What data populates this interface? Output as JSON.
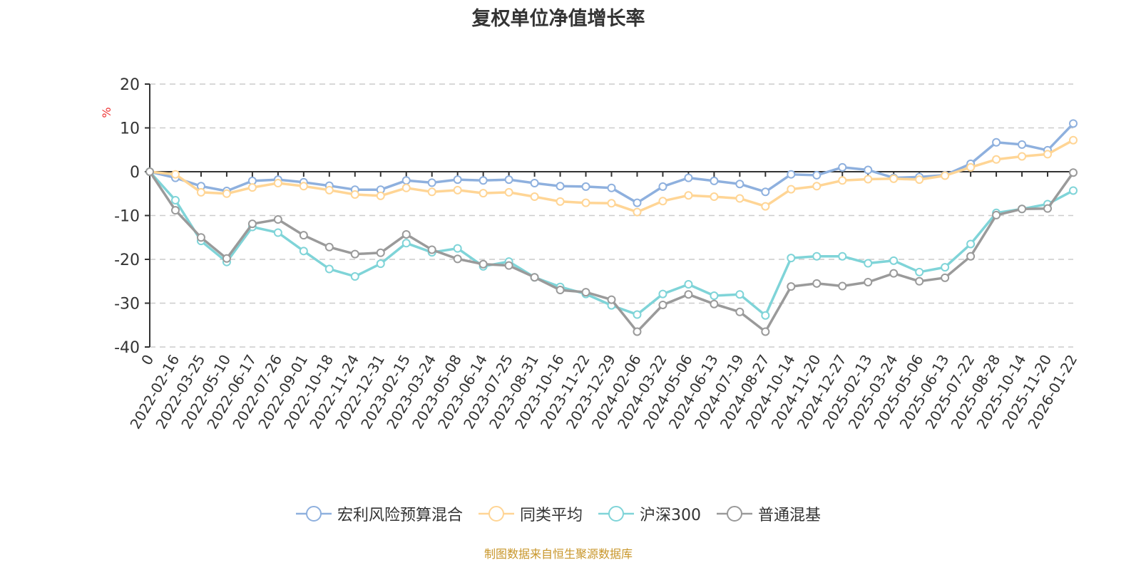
{
  "chart_data": {
    "type": "line",
    "title": "复权单位净值增长率",
    "ylabel": "%",
    "xlabel": "",
    "ylim": [
      -40,
      20
    ],
    "yticks": [
      20,
      10,
      0,
      -10,
      -20,
      -30,
      -40
    ],
    "grid": true,
    "legend_position": "bottom",
    "categories": [
      "0",
      "2022-02-16",
      "2022-03-25",
      "2022-05-10",
      "2022-06-17",
      "2022-07-26",
      "2022-09-01",
      "2022-10-18",
      "2022-11-24",
      "2022-12-31",
      "2023-02-15",
      "2023-03-24",
      "2023-05-08",
      "2023-06-14",
      "2023-07-25",
      "2023-08-31",
      "2023-10-16",
      "2023-11-22",
      "2023-12-29",
      "2024-02-06",
      "2024-03-22",
      "2024-05-06",
      "2024-06-13",
      "2024-07-19",
      "2024-08-27",
      "2024-10-14",
      "2024-11-20",
      "2024-12-27",
      "2025-02-13",
      "2025-03-24",
      "2025-05-06",
      "2025-06-13",
      "2025-07-22",
      "2025-08-28",
      "2025-10-14",
      "2025-11-20",
      "2026-01-22"
    ],
    "series": [
      {
        "name": "宏利风险预算混合",
        "color": "#8eb0de",
        "values": [
          0,
          -1.4,
          -3.3,
          -4.4,
          -2.1,
          -1.8,
          -2.4,
          -3.2,
          -4.1,
          -4.1,
          -2.0,
          -2.5,
          -1.8,
          -2.0,
          -1.8,
          -2.6,
          -3.3,
          -3.4,
          -3.7,
          -7.1,
          -3.4,
          -1.4,
          -2.1,
          -2.8,
          -4.6,
          -0.6,
          -0.8,
          1.0,
          0.4,
          -1.4,
          -1.2,
          -0.8,
          1.8,
          6.7,
          6.2,
          4.9,
          11.0
        ]
      },
      {
        "name": "同类平均",
        "color": "#ffd595",
        "values": [
          0,
          -0.6,
          -4.7,
          -5.0,
          -3.6,
          -2.6,
          -3.3,
          -4.2,
          -5.2,
          -5.5,
          -3.7,
          -4.6,
          -4.2,
          -4.9,
          -4.7,
          -5.7,
          -6.8,
          -7.1,
          -7.2,
          -9.2,
          -6.7,
          -5.4,
          -5.7,
          -6.1,
          -7.9,
          -4.0,
          -3.3,
          -2.0,
          -1.7,
          -1.6,
          -1.8,
          -0.9,
          1.0,
          2.8,
          3.5,
          4.0,
          7.2
        ]
      },
      {
        "name": "沪深300",
        "color": "#7fd4d8",
        "values": [
          0,
          -6.5,
          -15.8,
          -20.6,
          -12.6,
          -13.9,
          -18.1,
          -22.2,
          -23.9,
          -21.0,
          -16.3,
          -18.4,
          -17.5,
          -21.6,
          -20.5,
          -24.1,
          -26.3,
          -27.9,
          -30.5,
          -32.6,
          -27.9,
          -25.7,
          -28.3,
          -28.0,
          -32.8,
          -19.7,
          -19.3,
          -19.3,
          -20.9,
          -20.3,
          -22.9,
          -21.8,
          -16.5,
          -9.4,
          -8.5,
          -7.4,
          -4.3
        ]
      },
      {
        "name": "普通混基",
        "color": "#9a9a9a",
        "values": [
          0,
          -8.8,
          -15.0,
          -19.8,
          -11.9,
          -10.9,
          -14.5,
          -17.2,
          -18.8,
          -18.5,
          -14.3,
          -17.8,
          -19.9,
          -21.1,
          -21.4,
          -24.1,
          -27.0,
          -27.5,
          -29.2,
          -36.5,
          -30.4,
          -28.0,
          -30.2,
          -32.0,
          -36.5,
          -26.2,
          -25.5,
          -26.1,
          -25.2,
          -23.2,
          -25.0,
          -24.2,
          -19.3,
          -9.9,
          -8.5,
          -8.4,
          -0.2
        ]
      }
    ]
  },
  "footer": "制图数据来自恒生聚源数据库"
}
